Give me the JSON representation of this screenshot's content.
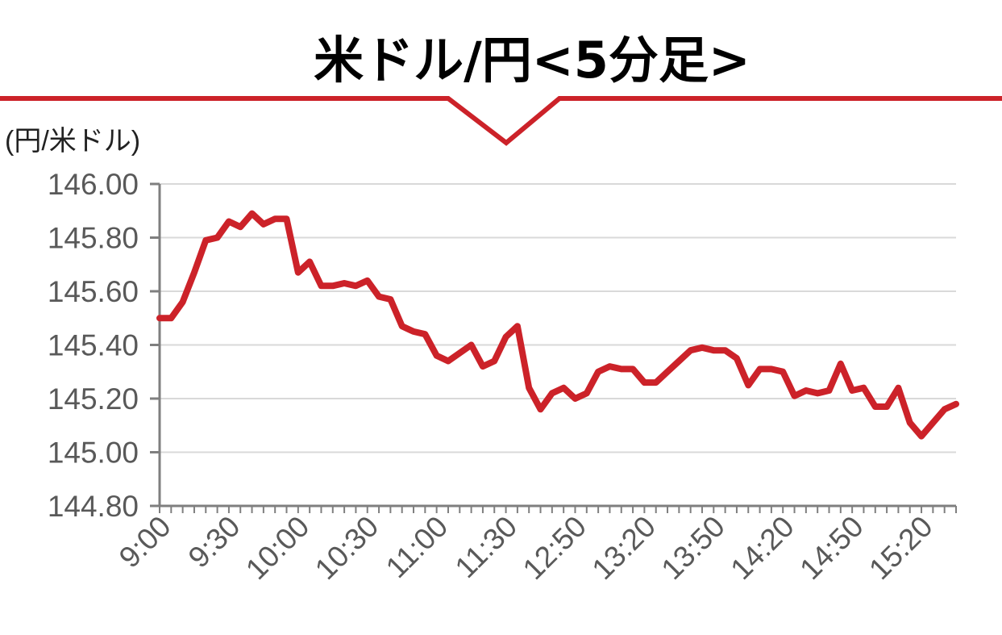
{
  "colors": {
    "accent": "#cc2229",
    "grid": "#d9d9d9",
    "axis": "#7f7f7f",
    "tick_text": "#595959",
    "title_text": "#000000"
  },
  "chart_data": {
    "type": "line",
    "title": "米ドル/円<5分足>",
    "ylabel": "(円/米ドル)",
    "xlabel": "",
    "ylim": [
      144.8,
      146.0
    ],
    "yticks": [
      "146.00",
      "145.80",
      "145.60",
      "145.40",
      "145.20",
      "145.00",
      "144.80"
    ],
    "x_tick_labels": [
      "9:00",
      "9:30",
      "10:00",
      "10:30",
      "11:00",
      "11:30",
      "12:50",
      "13:20",
      "13:50",
      "14:20",
      "14:50",
      "15:20"
    ],
    "grid": true,
    "series": [
      {
        "values": [
          145.5,
          145.5,
          145.56,
          145.67,
          145.79,
          145.8,
          145.86,
          145.84,
          145.89,
          145.85,
          145.87,
          145.87,
          145.67,
          145.71,
          145.62,
          145.62,
          145.63,
          145.62,
          145.64,
          145.58,
          145.57,
          145.47,
          145.45,
          145.44,
          145.36,
          145.34,
          145.37,
          145.4,
          145.32,
          145.34,
          145.43,
          145.47,
          145.24,
          145.16,
          145.22,
          145.24,
          145.2,
          145.22,
          145.3,
          145.32,
          145.31,
          145.31,
          145.26,
          145.26,
          145.3,
          145.34,
          145.38,
          145.39,
          145.38,
          145.38,
          145.35,
          145.25,
          145.31,
          145.31,
          145.3,
          145.21,
          145.23,
          145.22,
          145.23,
          145.33,
          145.23,
          145.24,
          145.17,
          145.17,
          145.24,
          145.11,
          145.06,
          145.11,
          145.16,
          145.18
        ]
      }
    ]
  }
}
